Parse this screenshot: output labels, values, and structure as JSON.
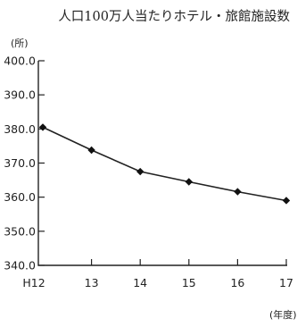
{
  "chart_data": {
    "type": "line",
    "title": "人口100万人当たりホテル・旅館施設数",
    "ylabel": "(所)",
    "xlabel": "(年度)",
    "categories": [
      "H12",
      "13",
      "14",
      "15",
      "16",
      "17"
    ],
    "series": [
      {
        "values": [
          380.5,
          373.8,
          367.5,
          364.5,
          361.6,
          359.0
        ]
      }
    ],
    "yticks": [
      "400.0",
      "390.0",
      "380.0",
      "370.0",
      "360.0",
      "350.0",
      "340.0"
    ],
    "ylim": [
      340,
      400
    ],
    "grid": false,
    "legend": "none",
    "colors": {
      "line": "#222222",
      "marker": "#111111"
    }
  }
}
